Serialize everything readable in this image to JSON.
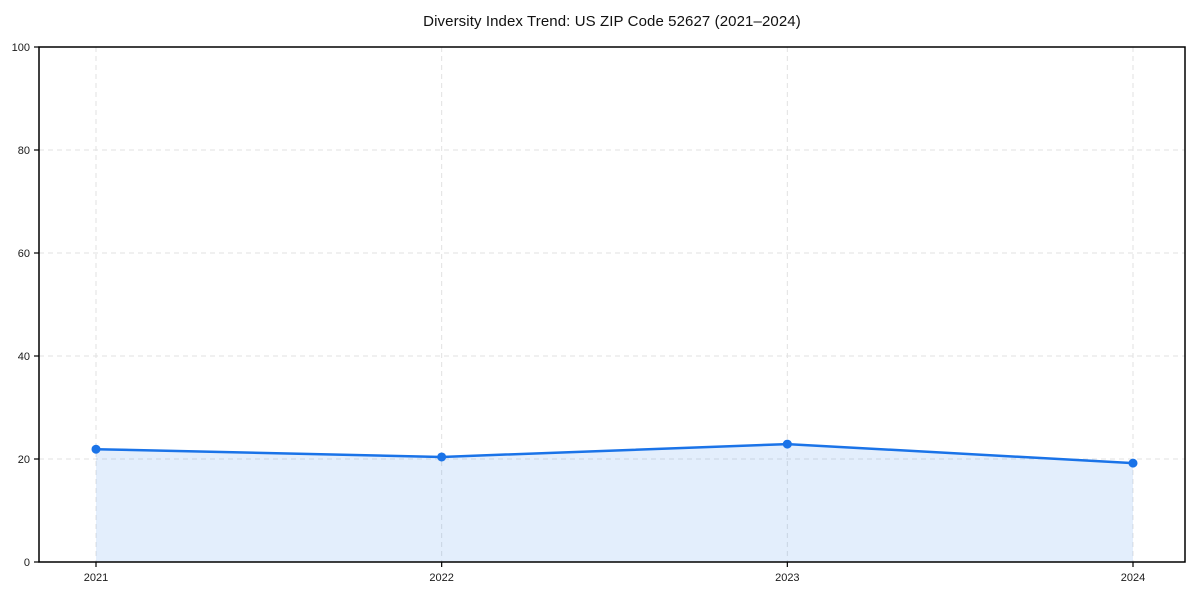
{
  "chart_data": {
    "type": "area",
    "title": "Diversity Index Trend: US ZIP Code 52627 (2021–2024)",
    "categories": [
      "2021",
      "2022",
      "2023",
      "2024"
    ],
    "series": [
      {
        "name": "Diversity Index",
        "values": [
          21.9,
          20.4,
          22.9,
          19.2
        ]
      }
    ],
    "xlabel": "",
    "ylabel": "",
    "ylim": [
      0,
      100
    ],
    "y_ticks": [
      0,
      20,
      40,
      60,
      80,
      100
    ],
    "grid": true,
    "grid_style": "dashed",
    "legend": false,
    "colors": {
      "line": "#1a73e8",
      "marker": "#1a73e8",
      "fill": "rgba(26,115,232,0.12)",
      "grid": "#e2e2e2",
      "frame": "#000000",
      "tick_text": "#1a1a1a"
    }
  }
}
